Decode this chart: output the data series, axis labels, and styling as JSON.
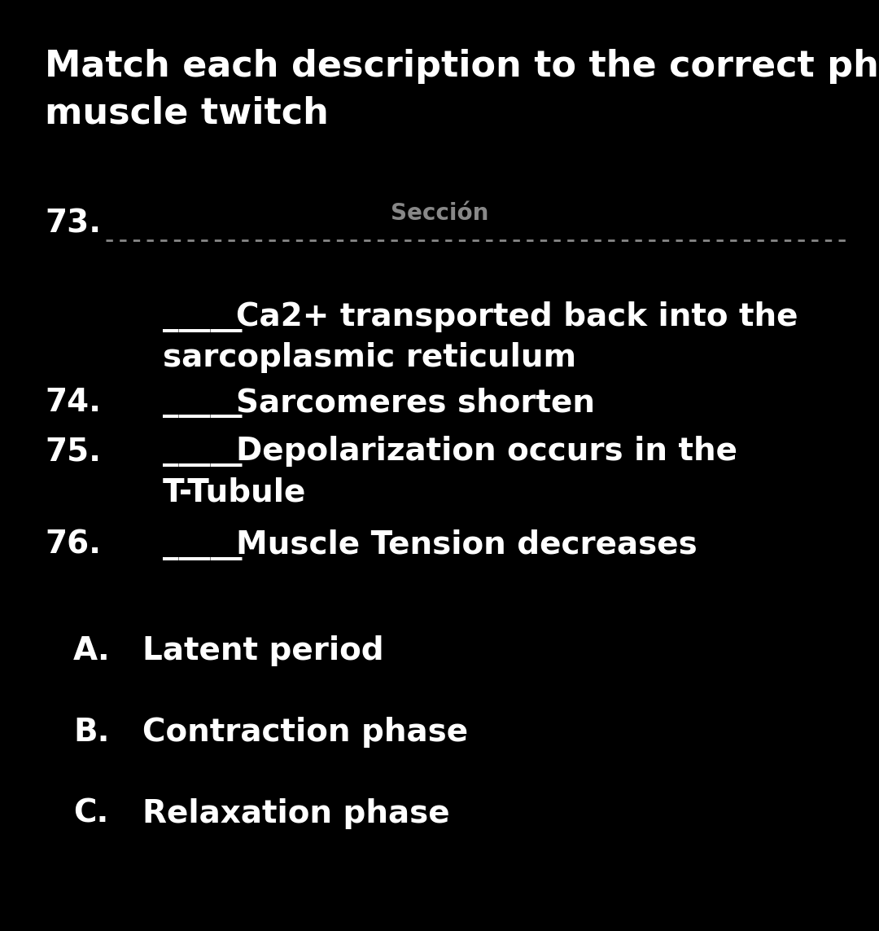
{
  "background_color": "#000000",
  "text_color": "#ffffff",
  "gray_color": "#888888",
  "title_line1": "Match each description to the correct phase of a",
  "title_line2": "muscle twitch",
  "section_label": "Sección",
  "num73": "73.",
  "num74": "74.",
  "num75": "75.",
  "num76": "76.",
  "item73_line1": "Ca2+ transported back into the",
  "item73_line2": "sarcoplasmic reticulum",
  "item74": "Sarcomeres shorten",
  "item75_line1": "Depolarization occurs in the",
  "item75_line2": "T-Tubule",
  "item76": "Muscle Tension decreases",
  "opt_a_letter": "A.",
  "opt_a_text": "Latent period",
  "opt_b_letter": "B.",
  "opt_b_text": "Contraction phase",
  "opt_c_letter": "C.",
  "opt_c_text": "Relaxation phase",
  "title_fontsize": 32,
  "item_fontsize": 28,
  "option_fontsize": 28,
  "number_fontsize": 28,
  "section_fontsize": 20,
  "blank_text": "_____"
}
